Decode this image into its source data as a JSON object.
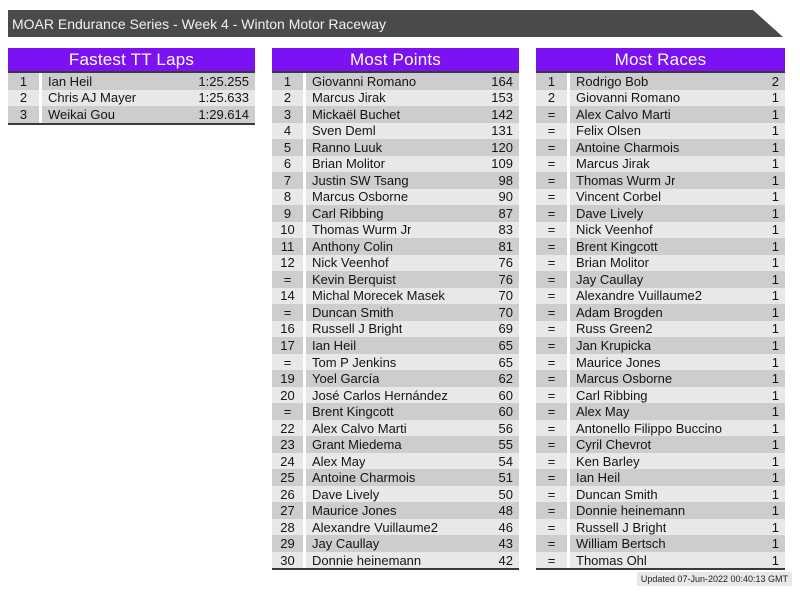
{
  "banner": {
    "title": "MOAR Endurance Series - Week 4 - Winton Motor Raceway"
  },
  "tables": [
    {
      "title": "Fastest TT Laps",
      "rows": [
        {
          "rank": "1",
          "name": "Ian Heil",
          "value": "1:25.255"
        },
        {
          "rank": "2",
          "name": "Chris AJ Mayer",
          "value": "1:25.633"
        },
        {
          "rank": "3",
          "name": "Weikai Gou",
          "value": "1:29.614"
        }
      ]
    },
    {
      "title": "Most Points",
      "rows": [
        {
          "rank": "1",
          "name": "Giovanni Romano",
          "value": "164"
        },
        {
          "rank": "2",
          "name": "Marcus Jirak",
          "value": "153"
        },
        {
          "rank": "3",
          "name": "Mickaël Buchet",
          "value": "142"
        },
        {
          "rank": "4",
          "name": "Sven Deml",
          "value": "131"
        },
        {
          "rank": "5",
          "name": "Ranno Luuk",
          "value": "120"
        },
        {
          "rank": "6",
          "name": "Brian Molitor",
          "value": "109"
        },
        {
          "rank": "7",
          "name": "Justin SW Tsang",
          "value": "98"
        },
        {
          "rank": "8",
          "name": "Marcus Osborne",
          "value": "90"
        },
        {
          "rank": "9",
          "name": "Carl Ribbing",
          "value": "87"
        },
        {
          "rank": "10",
          "name": "Thomas Wurm Jr",
          "value": "83"
        },
        {
          "rank": "11",
          "name": "Anthony Colin",
          "value": "81"
        },
        {
          "rank": "12",
          "name": "Nick Veenhof",
          "value": "76"
        },
        {
          "rank": "=",
          "name": "Kevin Berquist",
          "value": "76"
        },
        {
          "rank": "14",
          "name": "Michal Morecek Masek",
          "value": "70"
        },
        {
          "rank": "=",
          "name": "Duncan Smith",
          "value": "70"
        },
        {
          "rank": "16",
          "name": "Russell J Bright",
          "value": "69"
        },
        {
          "rank": "17",
          "name": "Ian Heil",
          "value": "65"
        },
        {
          "rank": "=",
          "name": "Tom P Jenkins",
          "value": "65"
        },
        {
          "rank": "19",
          "name": "Yoel García",
          "value": "62"
        },
        {
          "rank": "20",
          "name": "José Carlos Hernández",
          "value": "60"
        },
        {
          "rank": "=",
          "name": "Brent Kingcott",
          "value": "60"
        },
        {
          "rank": "22",
          "name": "Alex Calvo Marti",
          "value": "56"
        },
        {
          "rank": "23",
          "name": "Grant Miedema",
          "value": "55"
        },
        {
          "rank": "24",
          "name": "Alex May",
          "value": "54"
        },
        {
          "rank": "25",
          "name": "Antoine Charmois",
          "value": "51"
        },
        {
          "rank": "26",
          "name": "Dave Lively",
          "value": "50"
        },
        {
          "rank": "27",
          "name": "Maurice Jones",
          "value": "48"
        },
        {
          "rank": "28",
          "name": "Alexandre Vuillaume2",
          "value": "46"
        },
        {
          "rank": "29",
          "name": "Jay Caullay",
          "value": "43"
        },
        {
          "rank": "30",
          "name": "Donnie heinemann",
          "value": "42"
        }
      ]
    },
    {
      "title": "Most Races",
      "rows": [
        {
          "rank": "1",
          "name": "Rodrigo Bob",
          "value": "2"
        },
        {
          "rank": "2",
          "name": "Giovanni Romano",
          "value": "1"
        },
        {
          "rank": "=",
          "name": "Alex Calvo Marti",
          "value": "1"
        },
        {
          "rank": "=",
          "name": "Felix Olsen",
          "value": "1"
        },
        {
          "rank": "=",
          "name": "Antoine Charmois",
          "value": "1"
        },
        {
          "rank": "=",
          "name": "Marcus Jirak",
          "value": "1"
        },
        {
          "rank": "=",
          "name": "Thomas Wurm Jr",
          "value": "1"
        },
        {
          "rank": "=",
          "name": "Vincent Corbel",
          "value": "1"
        },
        {
          "rank": "=",
          "name": "Dave Lively",
          "value": "1"
        },
        {
          "rank": "=",
          "name": "Nick Veenhof",
          "value": "1"
        },
        {
          "rank": "=",
          "name": "Brent Kingcott",
          "value": "1"
        },
        {
          "rank": "=",
          "name": "Brian Molitor",
          "value": "1"
        },
        {
          "rank": "=",
          "name": "Jay Caullay",
          "value": "1"
        },
        {
          "rank": "=",
          "name": "Alexandre Vuillaume2",
          "value": "1"
        },
        {
          "rank": "=",
          "name": "Adam Brogden",
          "value": "1"
        },
        {
          "rank": "=",
          "name": "Russ Green2",
          "value": "1"
        },
        {
          "rank": "=",
          "name": "Jan Krupicka",
          "value": "1"
        },
        {
          "rank": "=",
          "name": "Maurice Jones",
          "value": "1"
        },
        {
          "rank": "=",
          "name": "Marcus Osborne",
          "value": "1"
        },
        {
          "rank": "=",
          "name": "Carl Ribbing",
          "value": "1"
        },
        {
          "rank": "=",
          "name": "Alex May",
          "value": "1"
        },
        {
          "rank": "=",
          "name": "Antonello Filippo Buccino",
          "value": "1"
        },
        {
          "rank": "=",
          "name": "Cyril Chevrot",
          "value": "1"
        },
        {
          "rank": "=",
          "name": "Ken Barley",
          "value": "1"
        },
        {
          "rank": "=",
          "name": "Ian Heil",
          "value": "1"
        },
        {
          "rank": "=",
          "name": "Duncan Smith",
          "value": "1"
        },
        {
          "rank": "=",
          "name": "Donnie heinemann",
          "value": "1"
        },
        {
          "rank": "=",
          "name": "Russell J Bright",
          "value": "1"
        },
        {
          "rank": "=",
          "name": "William Bertsch",
          "value": "1"
        },
        {
          "rank": "=",
          "name": "Thomas Ohl",
          "value": "1"
        }
      ]
    }
  ],
  "footer": {
    "updated": "Updated 07-Jun-2022 00:40:13 GMT"
  },
  "colors": {
    "banner_bg": "#4a4a4a",
    "header_bg": "#7c12f4",
    "row_light": "#e8e8e8",
    "row_dark": "#cdcdcd",
    "border_dark": "#3a3a3a",
    "footer_bg": "#e8e8e8"
  }
}
